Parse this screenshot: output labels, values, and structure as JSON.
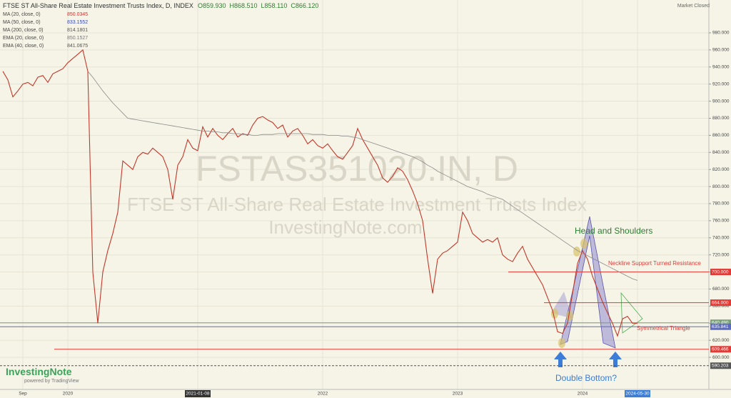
{
  "chart_data": {
    "type": "line",
    "title": "FTSE ST All-Share Real Estate Investment Trusts Index, D, INDEX",
    "ohlc": [
      "O859.930",
      "H868.510",
      "L858.110",
      "C866.120"
    ],
    "status": "Market Closed",
    "indicators": [
      {
        "label": "MA (20, close, 0)",
        "value": "850.0345",
        "color": "#d32f2f"
      },
      {
        "label": "MA (50, close, 0)",
        "value": "833.1552",
        "color": "#3949ab"
      },
      {
        "label": "MA (200, close, 0)",
        "value": "814.1801",
        "color": "#555"
      },
      {
        "label": "EMA (20, close, 0)",
        "value": "850.1527",
        "color": "#777"
      },
      {
        "label": "EMA (40, close, 0)",
        "value": "841.0675",
        "color": "#555"
      }
    ],
    "watermark": [
      "FSTAS351020.IN, D",
      "FTSE ST All-Share Real Estate Investment Trusts Index",
      "InvestingNote.com"
    ],
    "annotations": [
      "Head and Shoulders",
      "Neckline Support Turned Resistance",
      "Symmetrical Triangle",
      "Double Bottom?"
    ],
    "logo": [
      "InvestingNote",
      "powered by TradingView"
    ],
    "categories": [
      null,
      null,
      null,
      null,
      "Sep",
      null,
      null,
      null,
      null,
      null,
      null,
      null,
      null,
      "2020",
      null,
      null,
      null,
      null,
      null,
      null,
      null,
      null,
      null,
      null,
      null,
      null,
      null,
      null,
      null,
      null,
      null,
      null,
      null,
      null,
      null,
      null,
      null,
      null,
      null,
      "2021-01-08",
      null,
      null,
      null,
      null,
      null,
      null,
      null,
      null,
      null,
      null,
      null,
      null,
      null,
      null,
      null,
      null,
      null,
      null,
      null,
      null,
      null,
      null,
      null,
      null,
      "2022",
      null,
      null,
      null,
      null,
      null,
      null,
      null,
      null,
      null,
      null,
      null,
      null,
      null,
      null,
      null,
      null,
      null,
      null,
      null,
      null,
      null,
      null,
      null,
      null,
      null,
      null,
      "2023",
      null,
      null,
      null,
      null,
      null,
      null,
      null,
      null,
      null,
      null,
      null,
      null,
      null,
      null,
      null,
      null,
      null,
      null,
      null,
      null,
      null,
      null,
      null,
      null,
      "2024",
      null,
      null,
      null,
      null,
      null,
      null,
      null,
      null,
      null,
      null,
      "2024-05-30"
    ],
    "series": [
      {
        "name": "Close",
        "color": "#c0392b",
        "values": [
          935,
          925,
          905,
          912,
          920,
          922,
          918,
          928,
          930,
          922,
          932,
          935,
          938,
          945,
          950,
          955,
          960,
          935,
          700,
          640,
          700,
          725,
          745,
          770,
          830,
          825,
          820,
          835,
          840,
          838,
          845,
          840,
          835,
          820,
          785,
          825,
          835,
          855,
          845,
          842,
          870,
          858,
          868,
          860,
          855,
          862,
          868,
          858,
          862,
          860,
          872,
          880,
          882,
          878,
          875,
          868,
          872,
          858,
          865,
          868,
          860,
          850,
          855,
          848,
          845,
          850,
          842,
          835,
          832,
          840,
          848,
          868,
          855,
          845,
          835,
          825,
          810,
          805,
          812,
          822,
          818,
          808,
          795,
          780,
          760,
          715,
          675,
          715,
          722,
          725,
          730,
          735,
          770,
          760,
          745,
          740,
          735,
          738,
          735,
          740,
          720,
          715,
          712,
          722,
          730,
          715,
          705,
          695,
          685,
          670,
          655,
          630,
          628,
          640,
          675,
          710,
          725,
          715,
          695,
          680,
          665,
          652,
          640,
          625,
          645,
          648,
          640,
          640
        ]
      },
      {
        "name": "MA (200, close, 0)",
        "color": "#8a8a8a",
        "values": [
          null,
          null,
          null,
          null,
          null,
          null,
          null,
          null,
          null,
          null,
          null,
          null,
          null,
          null,
          null,
          null,
          null,
          935,
          928,
          920,
          912,
          905,
          898,
          892,
          886,
          880,
          879,
          878,
          877,
          876,
          875,
          874,
          873,
          872,
          871,
          870,
          869,
          868,
          867,
          866,
          865,
          865,
          864,
          864,
          863,
          863,
          862,
          862,
          861,
          861,
          860,
          860,
          861,
          861,
          861,
          862,
          862,
          862,
          862,
          862,
          862,
          862,
          861,
          861,
          861,
          860,
          860,
          860,
          859,
          859,
          858,
          857,
          855,
          853,
          851,
          849,
          847,
          845,
          843,
          841,
          839,
          837,
          835,
          832,
          829,
          825,
          822,
          818,
          815,
          812,
          809,
          806,
          803,
          800,
          798,
          796,
          794,
          791,
          789,
          787,
          785,
          781,
          777,
          773,
          769,
          765,
          761,
          757,
          753,
          749,
          745,
          741,
          737,
          733,
          729,
          725,
          722,
          719,
          716,
          713,
          710,
          707,
          704,
          701,
          698,
          695,
          692,
          690
        ]
      }
    ],
    "hlines": [
      {
        "value": 700,
        "label": "700.000",
        "color": "#e53935"
      },
      {
        "value": 664,
        "label": "664.000",
        "color": "#e53935"
      },
      {
        "value": 640.49,
        "label": "640.490",
        "color": "#7aa07a"
      },
      {
        "value": 635.841,
        "label": "635.841",
        "color": "#5c6bc0"
      },
      {
        "value": 609.466,
        "label": "609.466",
        "color": "#e53935"
      },
      {
        "value": 590.203,
        "label": "590.203",
        "color": "#555"
      }
    ],
    "ylim": [
      562,
      1003
    ],
    "yticks": [
      {
        "value": 600,
        "label": "600.000"
      },
      {
        "value": 620,
        "label": "620.000"
      },
      {
        "value": 640,
        "label": "640.000"
      },
      {
        "value": 660,
        "label": "660.000"
      },
      {
        "value": 680,
        "label": "680.000"
      },
      {
        "value": 700,
        "label": "700.000"
      },
      {
        "value": 720,
        "label": "720.000"
      },
      {
        "value": 740,
        "label": "740.000"
      },
      {
        "value": 760,
        "label": "760.000"
      },
      {
        "value": 780,
        "label": "780.000"
      },
      {
        "value": 800,
        "label": "800.000"
      },
      {
        "value": 820,
        "label": "820.000"
      },
      {
        "value": 840,
        "label": "840.000"
      },
      {
        "value": 860,
        "label": "860.000"
      },
      {
        "value": 880,
        "label": "880.000"
      },
      {
        "value": 900,
        "label": "900.000"
      },
      {
        "value": 920,
        "label": "920.000"
      },
      {
        "value": 940,
        "label": "940.000"
      },
      {
        "value": 960,
        "label": "960.000"
      },
      {
        "value": 980,
        "label": "980.000"
      }
    ],
    "grid": true
  }
}
